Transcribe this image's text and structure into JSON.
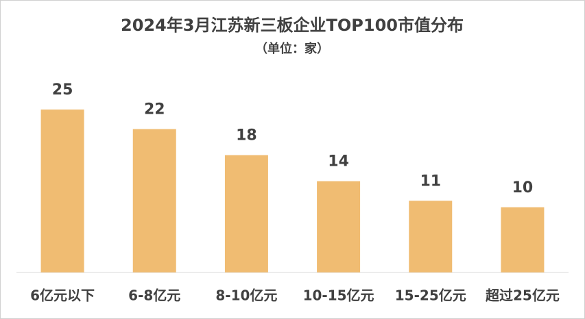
{
  "chart_data": {
    "type": "bar",
    "title": "2024年3月江苏新三板企业TOP100市值分布",
    "subtitle": "（单位：家）",
    "categories": [
      "6亿元以下",
      "6-8亿元",
      "8-10亿元",
      "10-15亿元",
      "15-25亿元",
      "超过25亿元"
    ],
    "values": [
      25,
      22,
      18,
      14,
      11,
      10
    ],
    "color": "#f0bc72"
  }
}
